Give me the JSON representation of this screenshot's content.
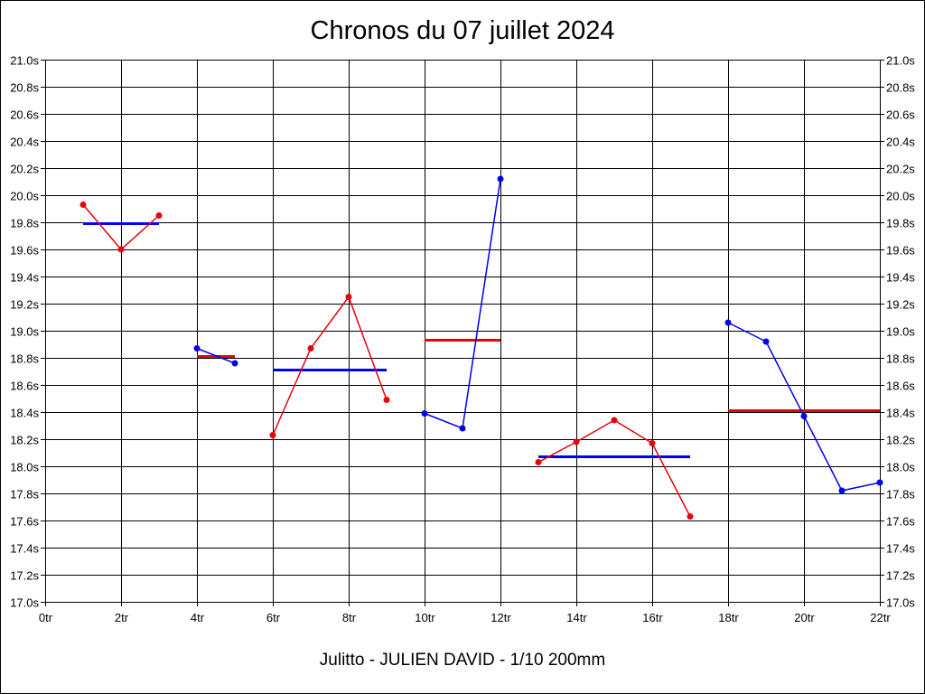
{
  "chart_data": {
    "type": "line",
    "title": "Chronos du 07 juillet 2024",
    "subtitle": "Julitto - JULIEN DAVID - 1/10 200mm",
    "xlabel": "",
    "ylabel": "",
    "xlim": [
      0,
      22
    ],
    "ylim": [
      17.0,
      21.0
    ],
    "x_ticks": [
      0,
      2,
      4,
      6,
      8,
      10,
      12,
      14,
      16,
      18,
      20,
      22
    ],
    "x_tick_labels": [
      "0tr",
      "2tr",
      "4tr",
      "6tr",
      "8tr",
      "10tr",
      "12tr",
      "14tr",
      "16tr",
      "18tr",
      "20tr",
      "22tr"
    ],
    "y_ticks": [
      17.0,
      17.2,
      17.4,
      17.6,
      17.8,
      18.0,
      18.2,
      18.4,
      18.6,
      18.8,
      19.0,
      19.2,
      19.4,
      19.6,
      19.8,
      20.0,
      20.2,
      20.4,
      20.6,
      20.8,
      21.0
    ],
    "y_tick_labels": [
      "17.0s",
      "17.2s",
      "17.4s",
      "17.6s",
      "17.8s",
      "18.0s",
      "18.2s",
      "18.4s",
      "18.6s",
      "18.8s",
      "19.0s",
      "19.2s",
      "19.4s",
      "19.6s",
      "19.8s",
      "20.0s",
      "20.2s",
      "20.4s",
      "20.6s",
      "20.8s",
      "21.0s"
    ],
    "grid": true,
    "series": [
      {
        "color": "#e8000b",
        "x": [
          1,
          2,
          3
        ],
        "values": [
          19.93,
          19.6,
          19.85
        ],
        "average": 19.79,
        "average_color": "#0000ee"
      },
      {
        "color": "#0000ee",
        "x": [
          4,
          5
        ],
        "values": [
          18.87,
          18.76
        ],
        "average": 18.81,
        "average_color": "#e8000b"
      },
      {
        "color": "#e8000b",
        "x": [
          6,
          7,
          8,
          9
        ],
        "values": [
          18.23,
          18.87,
          19.25,
          18.49
        ],
        "average": 18.71,
        "average_color": "#0000ee"
      },
      {
        "color": "#0000ee",
        "x": [
          10,
          11,
          12
        ],
        "values": [
          18.39,
          18.28,
          20.12
        ],
        "average": 18.93,
        "average_color": "#e8000b"
      },
      {
        "color": "#e8000b",
        "x": [
          13,
          14,
          15,
          16,
          17
        ],
        "values": [
          18.03,
          18.18,
          18.34,
          18.17,
          17.63
        ],
        "average": 18.07,
        "average_color": "#0000ee"
      },
      {
        "color": "#0000ee",
        "x": [
          18,
          19,
          20,
          21,
          22
        ],
        "values": [
          19.06,
          18.92,
          18.37,
          17.82,
          17.88
        ],
        "average": 18.41,
        "average_color": "#e8000b"
      }
    ]
  }
}
